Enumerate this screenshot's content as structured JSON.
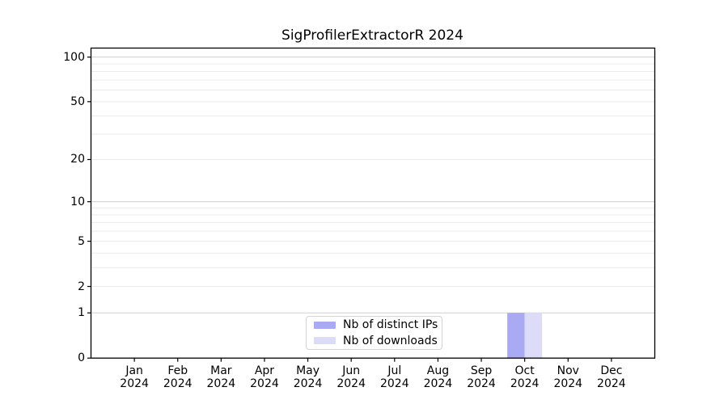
{
  "chart_data": {
    "type": "bar",
    "title": "SigProfilerExtractorR 2024",
    "categories": [
      "Jan 2024",
      "Feb 2024",
      "Mar 2024",
      "Apr 2024",
      "May 2024",
      "Jun 2024",
      "Jul 2024",
      "Aug 2024",
      "Sep 2024",
      "Oct 2024",
      "Nov 2024",
      "Dec 2024"
    ],
    "series": [
      {
        "name": "Nb of distinct IPs",
        "color": "#a9a9f4",
        "values": [
          0,
          0,
          0,
          0,
          0,
          0,
          0,
          0,
          0,
          1,
          0,
          0
        ]
      },
      {
        "name": "Nb of downloads",
        "color": "#dcdcf8",
        "values": [
          0,
          0,
          0,
          0,
          0,
          0,
          0,
          0,
          0,
          1,
          0,
          0
        ]
      }
    ],
    "xlabel": "",
    "ylabel": "",
    "yscale": "log1p",
    "ylim": [
      0,
      115
    ],
    "yticks": [
      0,
      1,
      2,
      5,
      10,
      20,
      50,
      100
    ],
    "gridlines_major": [
      1,
      10,
      100
    ],
    "gridlines_minor": [
      2,
      3,
      4,
      6,
      7,
      8,
      9,
      20,
      30,
      40,
      60,
      70,
      80,
      90,
      5,
      50
    ],
    "grid": true,
    "legend": {
      "position": "lower center",
      "entries": [
        "Nb of distinct IPs",
        "Nb of downloads"
      ]
    }
  },
  "style": {
    "background": "#ffffff",
    "spine_color": "#000000",
    "text_color": "#000000",
    "grid_major_color": "#cfcfcf",
    "grid_minor_color": "#eaeaea",
    "legend_border_color": "#d4d4d4",
    "legend_background": "#ffffff"
  }
}
